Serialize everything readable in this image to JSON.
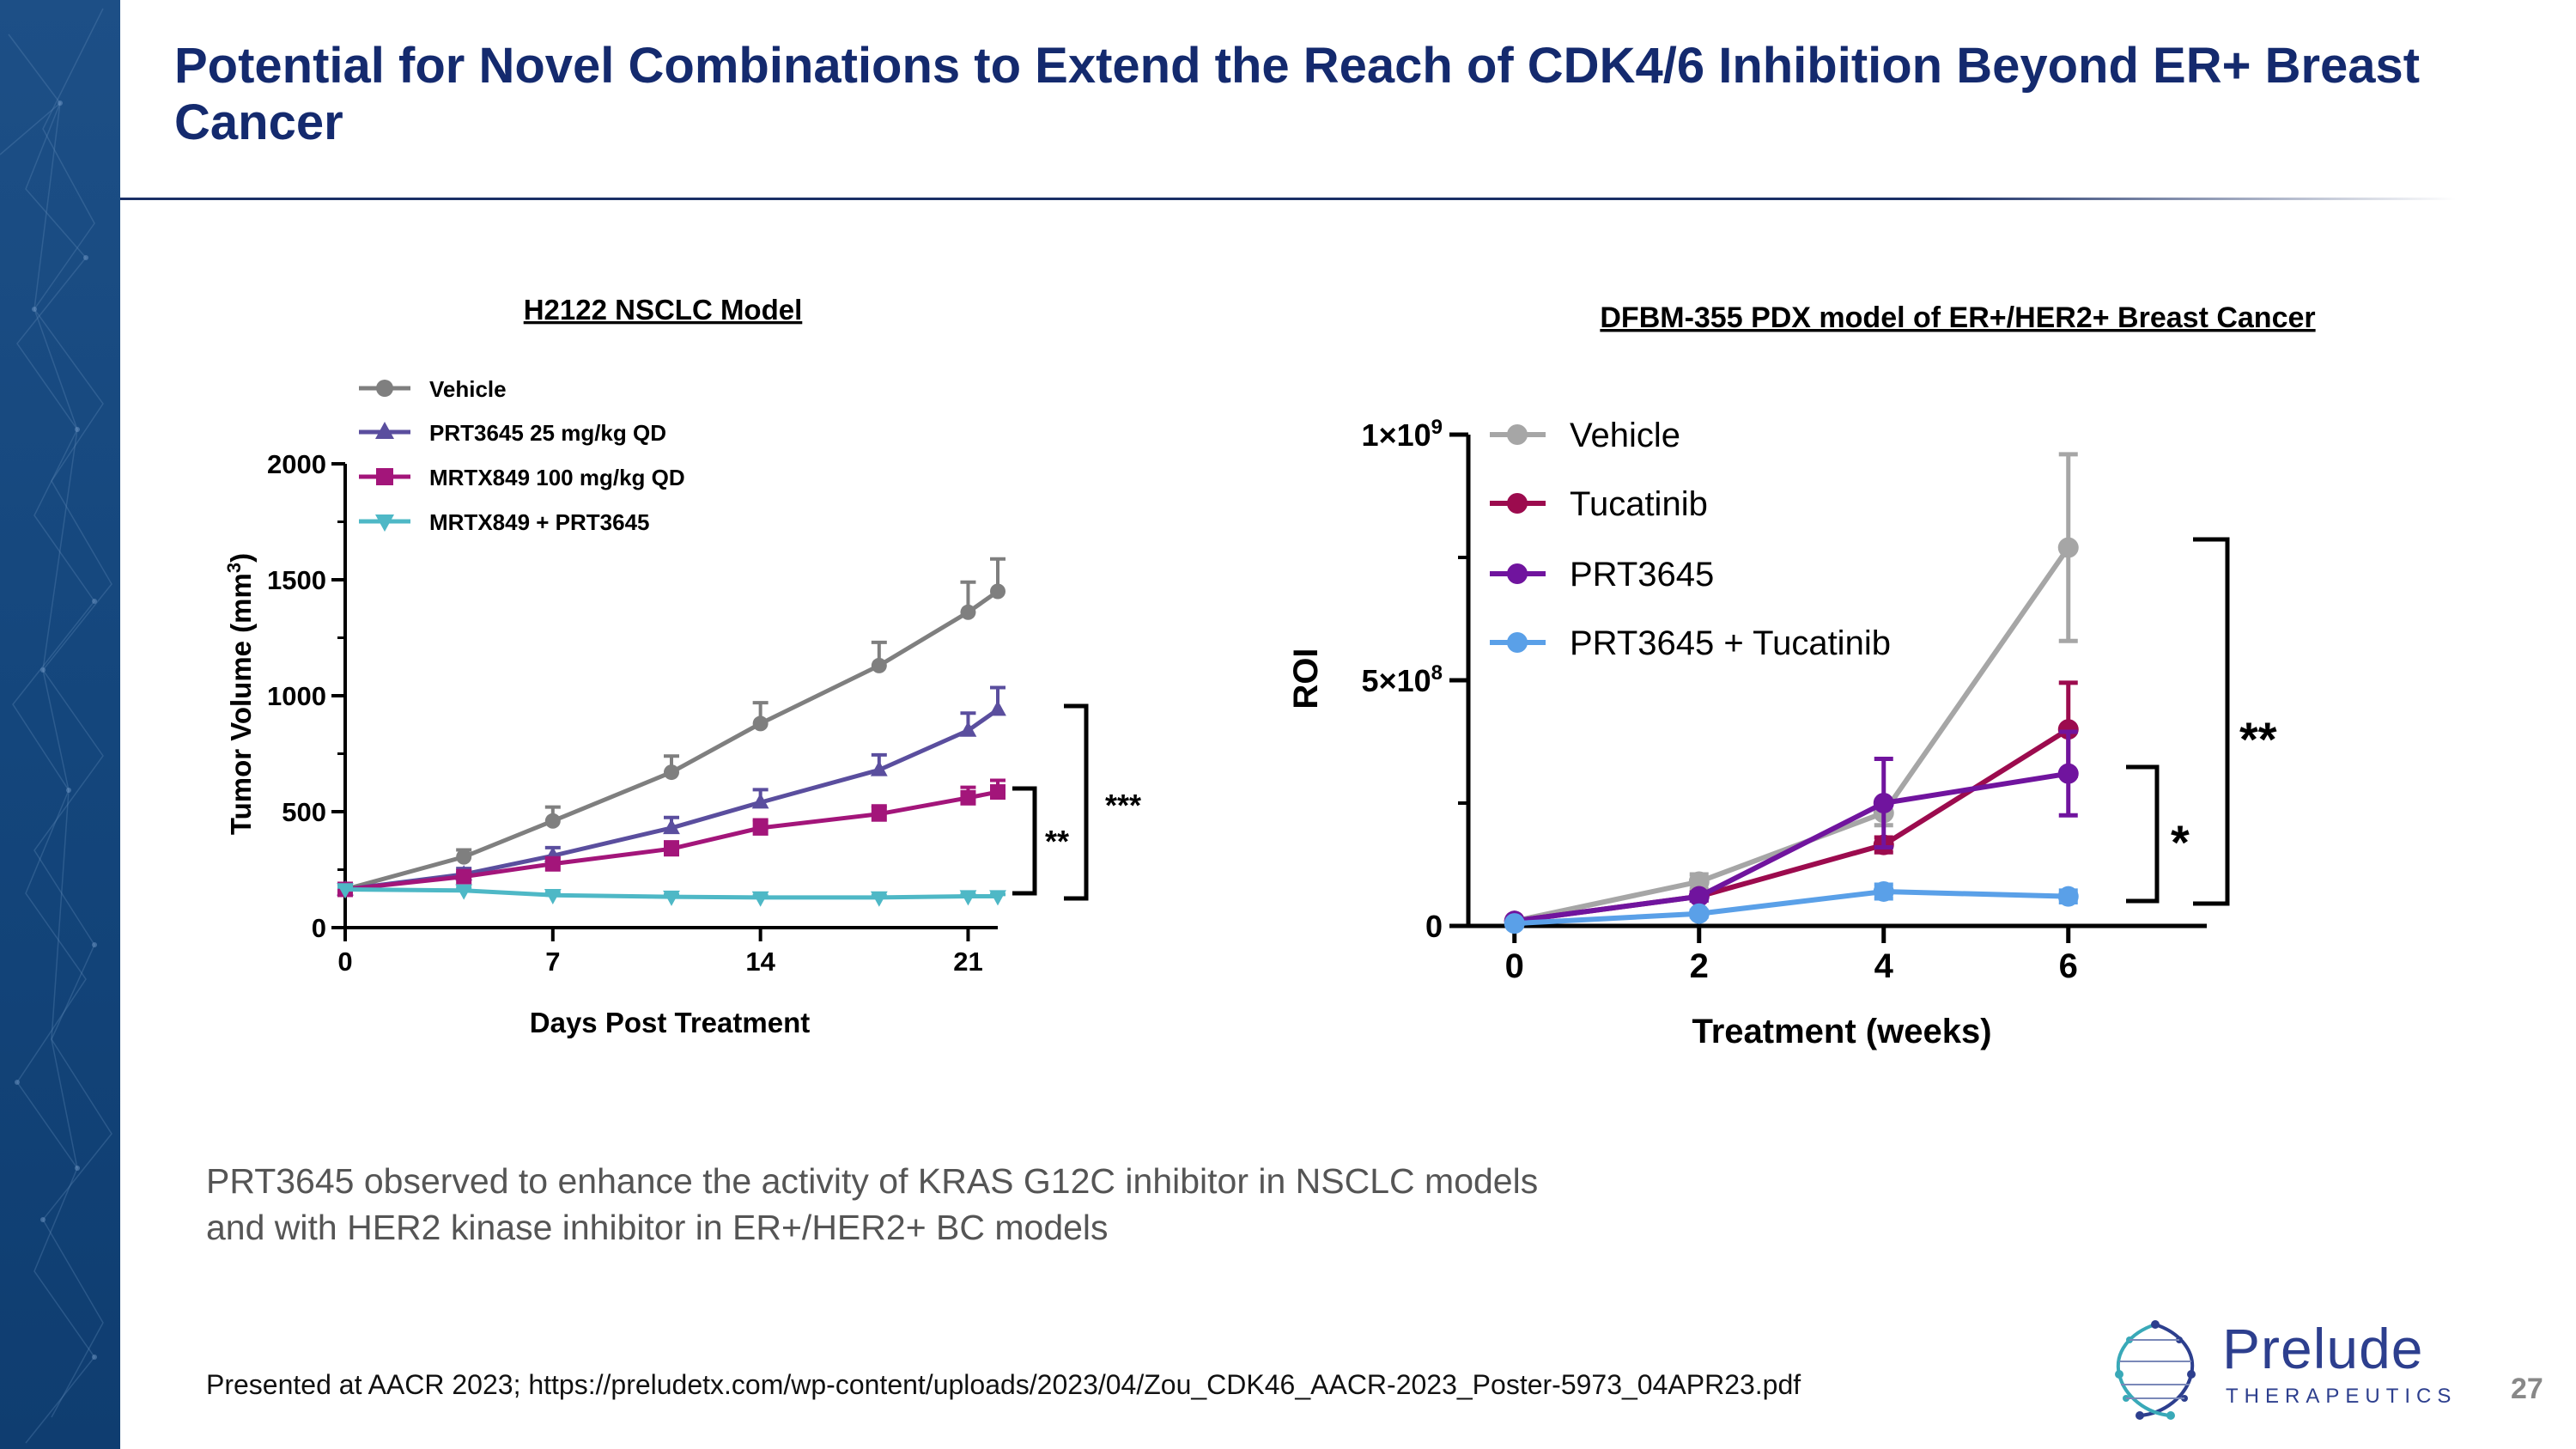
{
  "slide": {
    "title": "Potential for Novel Combinations to Extend the Reach of CDK4/6 Inhibition Beyond ER+ Breast Cancer",
    "summary_lines": [
      "PRT3645 observed to enhance the activity of KRAS G12C inhibitor in NSCLC models",
      "and with HER2 kinase inhibitor in ER+/HER2+ BC models"
    ],
    "footnote": "Presented at AACR 2023; https://preludetx.com/wp-content/uploads/2023/04/Zou_CDK46_AACR-2023_Poster-5973_04APR23.pdf",
    "page_number": "27",
    "logo": {
      "word": "Prelude",
      "sub": "THERAPEUTICS"
    }
  },
  "chart_data": [
    {
      "type": "line",
      "title": "H2122 NSCLC Model",
      "xlabel": "Days Post Treatment",
      "ylabel": "Tumor Volume (mm",
      "ylabel_sup": "3",
      "ylabel_end": ")",
      "xlim": [
        0,
        22
      ],
      "ylim": [
        0,
        2000
      ],
      "xticks": [
        0,
        7,
        14,
        21
      ],
      "yticks": [
        0,
        500,
        1000,
        1500,
        2000
      ],
      "x": [
        0,
        4,
        7,
        11,
        14,
        18,
        21,
        22
      ],
      "series": [
        {
          "name": "Vehicle",
          "color": "#7f7f7f",
          "marker": "circle",
          "values": [
            165,
            305,
            460,
            670,
            880,
            1130,
            1360,
            1450
          ],
          "errors": [
            20,
            30,
            60,
            70,
            90,
            100,
            130,
            140
          ]
        },
        {
          "name": "PRT3645 25 mg/kg QD",
          "color": "#5a4e9e",
          "marker": "triangle-up",
          "values": [
            165,
            230,
            310,
            430,
            540,
            680,
            850,
            940
          ],
          "errors": [
            15,
            25,
            35,
            45,
            55,
            65,
            75,
            95
          ]
        },
        {
          "name": "MRTX849 100 mg/kg QD",
          "color": "#a3157a",
          "marker": "square",
          "values": [
            165,
            220,
            275,
            340,
            430,
            490,
            560,
            585
          ],
          "errors": [
            15,
            18,
            25,
            30,
            35,
            35,
            45,
            50
          ]
        },
        {
          "name": "MRTX849 + PRT3645",
          "color": "#4eb8c6",
          "marker": "triangle-down",
          "values": [
            165,
            160,
            140,
            133,
            130,
            130,
            135,
            135
          ],
          "errors": [
            10,
            10,
            10,
            8,
            8,
            8,
            8,
            8
          ]
        }
      ],
      "annotations": [
        "**",
        "***"
      ]
    },
    {
      "type": "line",
      "title": "DFBM-355 PDX model of ER+/HER2+ Breast Cancer",
      "xlabel": "Treatment (weeks)",
      "ylabel": "ROI",
      "xlim": [
        -0.5,
        7.5
      ],
      "ylim": [
        0,
        1000000000
      ],
      "xticks": [
        0,
        2,
        4,
        6
      ],
      "yticks": [
        {
          "value": 0,
          "label": "0",
          "exp": ""
        },
        {
          "value": 500000000,
          "label": "5×10",
          "exp": "8"
        },
        {
          "value": 1000000000,
          "label": "1×10",
          "exp": "9"
        }
      ],
      "x": [
        0,
        2,
        4,
        6
      ],
      "series": [
        {
          "name": "Vehicle",
          "color": "#a6a6a6",
          "values": [
            10000000,
            90000000,
            230000000,
            770000000
          ],
          "errors": [
            0,
            15000000,
            25000000,
            190000000
          ]
        },
        {
          "name": "Tucatinib",
          "color": "#9c0b4e",
          "values": [
            10000000,
            60000000,
            165000000,
            400000000
          ],
          "errors": [
            0,
            8000000,
            15000000,
            95000000
          ]
        },
        {
          "name": "PRT3645",
          "color": "#70149e",
          "values": [
            10000000,
            60000000,
            250000000,
            310000000
          ],
          "errors": [
            0,
            8000000,
            90000000,
            85000000
          ]
        },
        {
          "name": "PRT3645 + Tucatinib",
          "color": "#5aa0e8",
          "values": [
            5000000,
            25000000,
            70000000,
            60000000
          ],
          "errors": [
            0,
            6000000,
            14000000,
            12000000
          ]
        }
      ],
      "annotations": [
        "*",
        "**"
      ]
    }
  ]
}
